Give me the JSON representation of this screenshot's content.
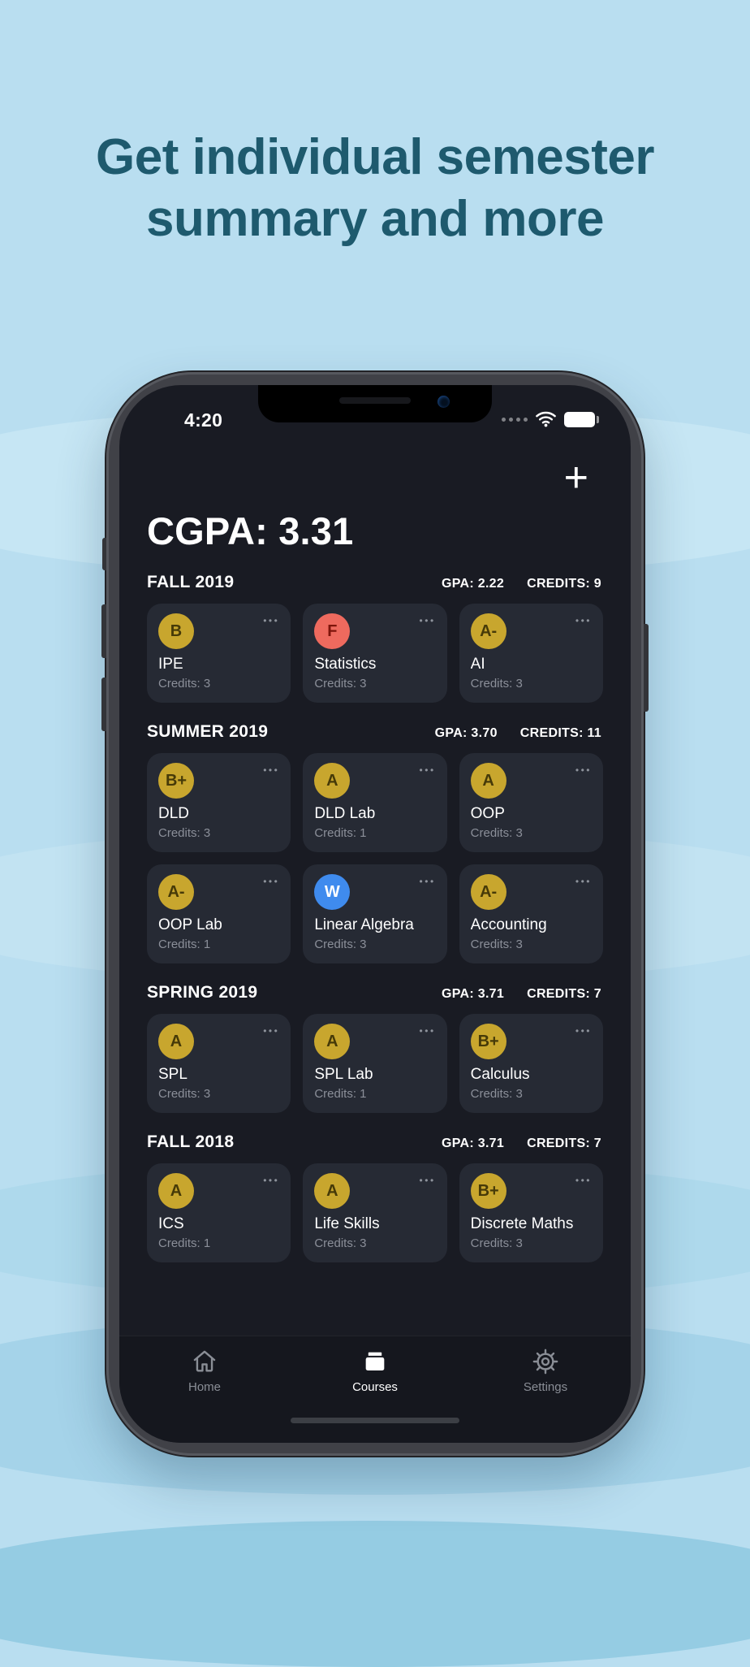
{
  "hero": {
    "title_line1": "Get individual semester",
    "title_line2": "summary and more"
  },
  "icons": {
    "card_menu": "•••"
  },
  "theme": {
    "background": "#b9def0",
    "title_color": "#1e5a6e",
    "screen_bg": "#191b23",
    "card_bg": "#262a34",
    "grade_colors": {
      "warn": "#c8a62e",
      "fail": "#ee6a5e",
      "withdraw": "#3f8bee"
    }
  },
  "phone": {
    "status_bar": {
      "time": "4:20"
    },
    "header": {
      "cgpa_label": "CGPA: 3.31",
      "add_button": "+"
    },
    "sections": [
      {
        "name": "FALL 2019",
        "gpa": "GPA: 2.22",
        "credits": "CREDITS: 9",
        "courses": [
          {
            "grade": "B",
            "grade_class": "warn",
            "name": "IPE",
            "credits": "Credits: 3"
          },
          {
            "grade": "F",
            "grade_class": "fail",
            "name": "Statistics",
            "credits": "Credits: 3"
          },
          {
            "grade": "A-",
            "grade_class": "warn",
            "name": "AI",
            "credits": "Credits: 3"
          }
        ]
      },
      {
        "name": "SUMMER 2019",
        "gpa": "GPA: 3.70",
        "credits": "CREDITS: 11",
        "courses": [
          {
            "grade": "B+",
            "grade_class": "warn",
            "name": "DLD",
            "credits": "Credits: 3"
          },
          {
            "grade": "A",
            "grade_class": "warn",
            "name": "DLD Lab",
            "credits": "Credits: 1"
          },
          {
            "grade": "A",
            "grade_class": "warn",
            "name": "OOP",
            "credits": "Credits: 3"
          },
          {
            "grade": "A-",
            "grade_class": "warn",
            "name": "OOP Lab",
            "credits": "Credits: 1"
          },
          {
            "grade": "W",
            "grade_class": "withdraw",
            "name": "Linear Algebra",
            "credits": "Credits: 3"
          },
          {
            "grade": "A-",
            "grade_class": "warn",
            "name": "Accounting",
            "credits": "Credits: 3"
          }
        ]
      },
      {
        "name": "SPRING 2019",
        "gpa": "GPA: 3.71",
        "credits": "CREDITS: 7",
        "courses": [
          {
            "grade": "A",
            "grade_class": "warn",
            "name": "SPL",
            "credits": "Credits: 3"
          },
          {
            "grade": "A",
            "grade_class": "warn",
            "name": "SPL Lab",
            "credits": "Credits: 1"
          },
          {
            "grade": "B+",
            "grade_class": "warn",
            "name": "Calculus",
            "credits": "Credits: 3"
          }
        ]
      },
      {
        "name": "FALL 2018",
        "gpa": "GPA: 3.71",
        "credits": "CREDITS: 7",
        "courses": [
          {
            "grade": "A",
            "grade_class": "warn",
            "name": "ICS",
            "credits": "Credits: 1"
          },
          {
            "grade": "A",
            "grade_class": "warn",
            "name": "Life Skills",
            "credits": "Credits: 3"
          },
          {
            "grade": "B+",
            "grade_class": "warn",
            "name": "Discrete Maths",
            "credits": "Credits: 3"
          }
        ]
      }
    ],
    "tab_bar": {
      "items": [
        {
          "label": "Home",
          "icon": "home-icon",
          "active": false
        },
        {
          "label": "Courses",
          "icon": "courses-icon",
          "active": true
        },
        {
          "label": "Settings",
          "icon": "settings-icon",
          "active": false
        }
      ]
    }
  }
}
